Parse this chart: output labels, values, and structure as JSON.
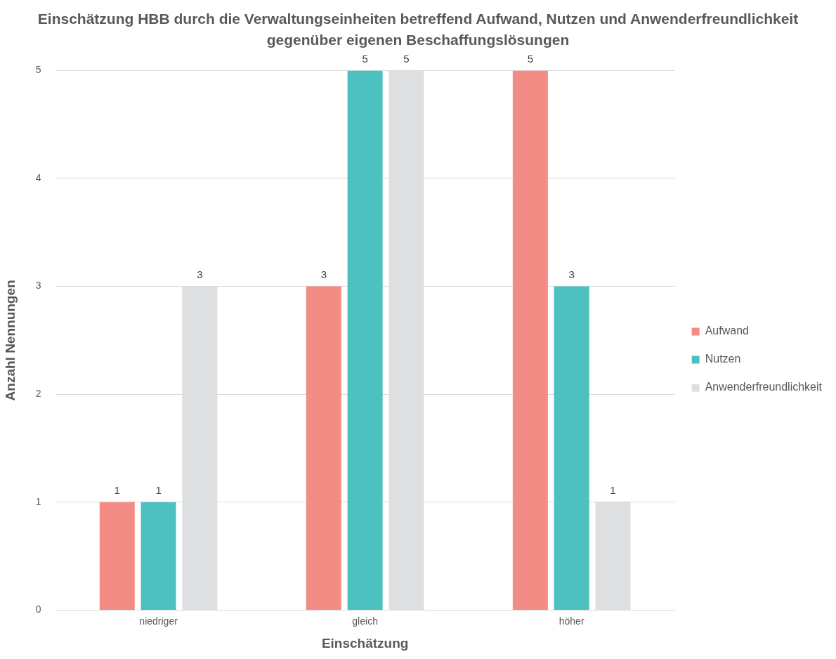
{
  "chart_data": {
    "type": "bar",
    "title": "Einschätzung HBB durch die Verwaltungseinheiten betreffend Aufwand, Nutzen und Anwenderfreundlichkeit gegenüber eigenen Beschaffungslösungen",
    "xlabel": "Einschätzung",
    "ylabel": "Anzahl Nennungen",
    "categories": [
      "niedriger",
      "gleich",
      "höher"
    ],
    "series": [
      {
        "name": "Aufwand",
        "color": "#f28c84",
        "values": [
          1,
          3,
          5
        ]
      },
      {
        "name": "Nutzen",
        "color": "#4cc1c0",
        "values": [
          1,
          5,
          3
        ]
      },
      {
        "name": "Anwenderfreundlichkeit",
        "color": "#dedfe1",
        "values": [
          3,
          5,
          1
        ]
      }
    ],
    "ylim": [
      0,
      5
    ],
    "yticks": [
      0,
      1,
      2,
      3,
      4,
      5
    ],
    "grid": "y",
    "legend": "right",
    "data_labels": true
  }
}
